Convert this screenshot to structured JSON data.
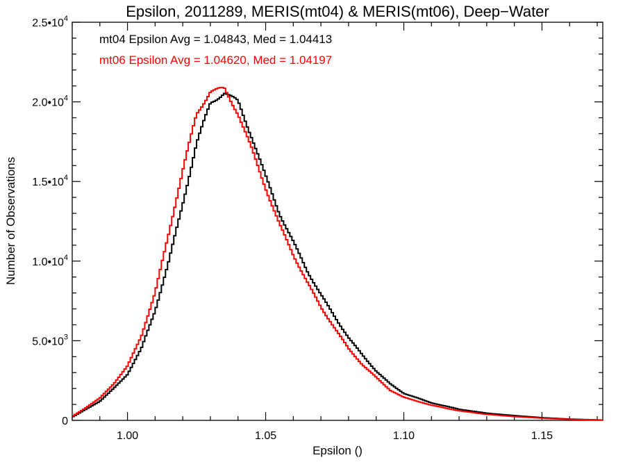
{
  "chart_data": {
    "type": "line",
    "style": "step-histogram",
    "title": "Epsilon, 2011289, MERIS(mt04) & MERIS(mt06), Deep−Water",
    "xlabel": "Epsilon ()",
    "ylabel": "Number of Observations",
    "xlim": [
      0.98,
      1.172
    ],
    "ylim": [
      0,
      25000
    ],
    "grid": false,
    "x_ticks": [
      1.0,
      1.05,
      1.1,
      1.15
    ],
    "x_tick_labels": [
      "1.00",
      "1.05",
      "1.10",
      "1.15"
    ],
    "y_ticks": [
      {
        "value": 0,
        "mantissa": "0",
        "exponent": ""
      },
      {
        "value": 5000,
        "mantissa": "5.0•10",
        "exponent": "3"
      },
      {
        "value": 10000,
        "mantissa": "1.0•10",
        "exponent": "4"
      },
      {
        "value": 15000,
        "mantissa": "1.5•10",
        "exponent": "4"
      },
      {
        "value": 20000,
        "mantissa": "2.0•10",
        "exponent": "4"
      },
      {
        "value": 25000,
        "mantissa": "2.5•10",
        "exponent": "4"
      }
    ],
    "annotations": [
      {
        "text": "mt04 Epsilon Avg = 1.04843, Med = 1.04413",
        "color": "#000000"
      },
      {
        "text": "mt06 Epsilon Avg = 1.04620, Med = 1.04197",
        "color": "#ff0000"
      }
    ],
    "series": [
      {
        "name": "mt04",
        "color": "#000000",
        "x": [
          0.98,
          0.985,
          0.99,
          0.995,
          1.0,
          1.005,
          1.01,
          1.015,
          1.02,
          1.025,
          1.03,
          1.035,
          1.04,
          1.045,
          1.05,
          1.055,
          1.06,
          1.065,
          1.07,
          1.075,
          1.08,
          1.085,
          1.09,
          1.095,
          1.1,
          1.11,
          1.12,
          1.13,
          1.14,
          1.15,
          1.16,
          1.172
        ],
        "y": [
          200,
          700,
          1200,
          2000,
          2900,
          4500,
          6900,
          10000,
          13600,
          17400,
          19900,
          20600,
          20000,
          17800,
          15300,
          13000,
          11200,
          9400,
          7900,
          6500,
          5200,
          4100,
          3100,
          2300,
          1700,
          1100,
          700,
          450,
          300,
          170,
          80,
          20
        ]
      },
      {
        "name": "mt06",
        "color": "#ff0000",
        "x": [
          0.98,
          0.985,
          0.99,
          0.995,
          1.0,
          1.005,
          1.01,
          1.015,
          1.02,
          1.025,
          1.03,
          1.035,
          1.04,
          1.045,
          1.05,
          1.055,
          1.06,
          1.065,
          1.07,
          1.075,
          1.08,
          1.085,
          1.09,
          1.095,
          1.1,
          1.11,
          1.12,
          1.13,
          1.14,
          1.15,
          1.16,
          1.172
        ],
        "y": [
          250,
          800,
          1400,
          2300,
          3400,
          5300,
          8000,
          11800,
          15700,
          19200,
          20700,
          20800,
          19300,
          17000,
          14600,
          12300,
          10400,
          8700,
          7100,
          5800,
          4500,
          3500,
          2700,
          1900,
          1450,
          950,
          600,
          380,
          240,
          140,
          60,
          20
        ]
      }
    ]
  }
}
